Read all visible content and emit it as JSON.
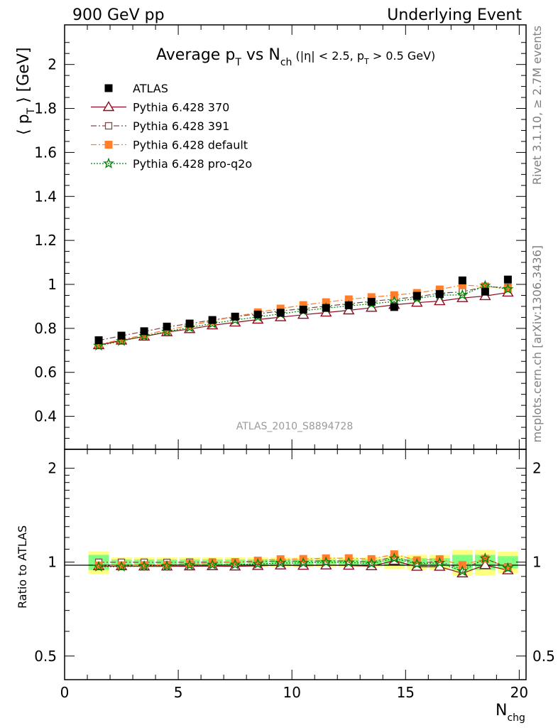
{
  "header": {
    "left": "900 GeV pp",
    "right": "Underlying Event"
  },
  "side_labels": {
    "top": "Rivet 3.1.10, ≥ 2.7M events",
    "bottom": "mcplots.cern.ch [arXiv:1306.3436]"
  },
  "watermark": "ATLAS_2010_S8894728",
  "colors": {
    "atlas": "#000000",
    "p370": "#8b0a1e",
    "p391": "#7a4a4a",
    "pdefault": "#ff7f2a",
    "pq2o": "#008000",
    "band_outer": "#ffff80",
    "band_inner": "#80ff80"
  },
  "chart_data": [
    {
      "type": "scatter",
      "title": "Average p_T vs N_ch (|η| < 2.5, p_T > 0.5 GeV)",
      "title_parts": {
        "main": "Average p",
        "sub1": "T",
        "vs": " vs N",
        "sub2": "ch",
        "cut1": " (|η| < 2.5, p",
        "sub3": "T",
        "cut2": " > 0.5 GeV)"
      },
      "ylabel": "⟨ p_T ⟩ [GeV]",
      "ylabel_parts": {
        "a": "⟨ p",
        "sub": "T",
        "b": " ⟩ [GeV]"
      },
      "xlim": [
        0,
        20.3
      ],
      "ylim": [
        0.25,
        2.18
      ],
      "yticks": [
        0.4,
        0.6,
        0.8,
        1,
        1.2,
        1.4,
        1.6,
        1.8,
        2
      ],
      "ytick_labels": [
        "0.4",
        "0.6",
        "0.8",
        "1",
        "1.2",
        "1.4",
        "1.6",
        "1.8",
        "2"
      ],
      "x": [
        1.5,
        2.5,
        3.5,
        4.5,
        5.5,
        6.5,
        7.5,
        8.5,
        9.5,
        10.5,
        11.5,
        12.5,
        13.5,
        14.5,
        15.5,
        16.5,
        17.5,
        18.5,
        19.5
      ],
      "series": [
        {
          "name": "ATLAS",
          "key": "atlas",
          "marker": "square-filled",
          "line": "none",
          "values": [
            0.746,
            0.767,
            0.787,
            0.808,
            0.822,
            0.838,
            0.853,
            0.863,
            0.871,
            0.885,
            0.893,
            0.905,
            0.921,
            0.897,
            0.948,
            0.956,
            1.018,
            0.967,
            1.022
          ]
        },
        {
          "name": "Pythia 6.428 370",
          "key": "p370",
          "marker": "triangle-open",
          "line": "solid",
          "values": [
            0.724,
            0.745,
            0.763,
            0.783,
            0.797,
            0.814,
            0.827,
            0.84,
            0.851,
            0.862,
            0.872,
            0.882,
            0.894,
            0.907,
            0.917,
            0.924,
            0.938,
            0.947,
            0.963
          ]
        },
        {
          "name": "Pythia 6.428 391",
          "key": "p391",
          "marker": "square-open",
          "line": "dashdot",
          "values": [
            0.745,
            0.766,
            0.786,
            0.806,
            0.822,
            0.838,
            0.853,
            0.866,
            0.879,
            0.89,
            0.901,
            0.912,
            0.923,
            0.933,
            0.943,
            0.96,
            0.966,
            0.99,
            0.986
          ]
        },
        {
          "name": "Pythia 6.428 default",
          "key": "pdefault",
          "marker": "square-filled",
          "line": "dashdot",
          "values": [
            0.727,
            0.749,
            0.77,
            0.793,
            0.813,
            0.834,
            0.854,
            0.873,
            0.89,
            0.906,
            0.919,
            0.932,
            0.942,
            0.951,
            0.961,
            0.977,
            0.997,
            0.991,
            0.982
          ]
        },
        {
          "name": "Pythia 6.428 pro-q2o",
          "key": "pq2o",
          "marker": "star",
          "line": "dotted",
          "values": [
            0.721,
            0.742,
            0.765,
            0.785,
            0.804,
            0.822,
            0.838,
            0.852,
            0.866,
            0.88,
            0.892,
            0.902,
            0.912,
            0.922,
            0.936,
            0.951,
            0.952,
            0.994,
            0.978
          ]
        }
      ]
    },
    {
      "type": "scatter",
      "ylabel": "Ratio to ATLAS",
      "xlabel": "N_chg",
      "xlabel_parts": {
        "a": "N",
        "sub": "chg"
      },
      "xlim": [
        0,
        20.3
      ],
      "ylim": [
        0.42,
        2.3
      ],
      "scale": "log",
      "xticks": [
        0,
        5,
        10,
        15,
        20
      ],
      "xtick_labels": [
        "0",
        "5",
        "10",
        "15",
        "20"
      ],
      "yticks": [
        0.5,
        1,
        2
      ],
      "ytick_labels": [
        "0.5",
        "1",
        "2"
      ],
      "band_x_edges": [
        1,
        2,
        3,
        4,
        5,
        6,
        7,
        8,
        9,
        10,
        11,
        12,
        13,
        14,
        15,
        16,
        17,
        18,
        19,
        20
      ],
      "band_outer": [
        0.083,
        0.035,
        0.035,
        0.035,
        0.035,
        0.035,
        0.035,
        0.035,
        0.035,
        0.035,
        0.035,
        0.035,
        0.035,
        0.05,
        0.055,
        0.055,
        0.095,
        0.095,
        0.08
      ],
      "band_inner": [
        0.055,
        0.02,
        0.02,
        0.02,
        0.02,
        0.02,
        0.02,
        0.02,
        0.02,
        0.02,
        0.02,
        0.02,
        0.02,
        0.028,
        0.03,
        0.03,
        0.055,
        0.055,
        0.045
      ],
      "series": [
        {
          "name": "Pythia 6.428 370",
          "key": "p370",
          "marker": "triangle-open",
          "line": "solid",
          "values": [
            0.971,
            0.971,
            0.969,
            0.969,
            0.97,
            0.971,
            0.969,
            0.973,
            0.977,
            0.974,
            0.977,
            0.975,
            0.971,
            1.011,
            0.967,
            0.967,
            0.921,
            0.979,
            0.942
          ]
        },
        {
          "name": "Pythia 6.428 391",
          "key": "p391",
          "marker": "square-open",
          "line": "dashdot",
          "values": [
            0.999,
            0.999,
            0.999,
            0.998,
            1.0,
            1.0,
            1.0,
            1.003,
            1.009,
            1.006,
            1.009,
            1.008,
            1.002,
            1.04,
            0.995,
            1.004,
            0.949,
            1.024,
            0.965
          ]
        },
        {
          "name": "Pythia 6.428 default",
          "key": "pdefault",
          "marker": "square-filled",
          "line": "dashdot",
          "values": [
            0.975,
            0.977,
            0.978,
            0.981,
            0.989,
            0.995,
            1.001,
            1.012,
            1.022,
            1.024,
            1.029,
            1.03,
            1.023,
            1.06,
            1.014,
            1.022,
            0.979,
            1.025,
            0.961
          ]
        },
        {
          "name": "Pythia 6.428 pro-q2o",
          "key": "pq2o",
          "marker": "star",
          "line": "dotted",
          "values": [
            0.967,
            0.967,
            0.972,
            0.972,
            0.978,
            0.981,
            0.982,
            0.987,
            0.994,
            0.994,
            0.999,
            0.997,
            0.99,
            1.028,
            0.987,
            0.995,
            0.935,
            1.028,
            0.957
          ]
        }
      ]
    }
  ]
}
